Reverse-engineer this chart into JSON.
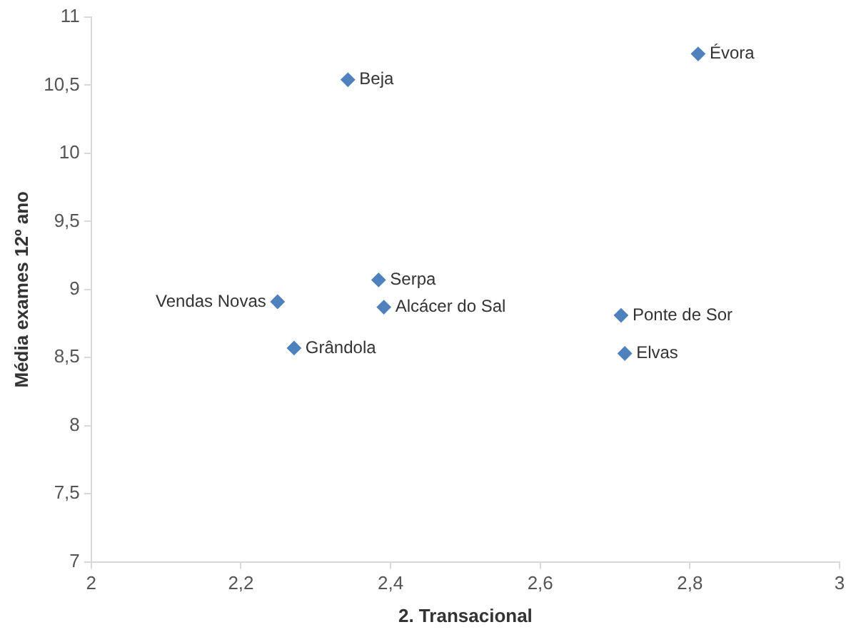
{
  "chart_data": {
    "type": "scatter",
    "xlabel": "2. Transacional",
    "ylabel": "Média exames 12º ano",
    "x": [
      2.811,
      2.343,
      2.384,
      2.249,
      2.391,
      2.271,
      2.708,
      2.713
    ],
    "series": [
      {
        "color": "#4f81bd",
        "values": [
          10.73,
          10.54,
          9.07,
          8.91,
          8.87,
          8.57,
          8.81,
          8.53
        ]
      }
    ],
    "xlim": [
      2,
      3
    ],
    "xticks": [
      2,
      {
        "value": 2.2,
        "label": "2,2"
      },
      {
        "value": 2.4,
        "label": "2,4"
      },
      {
        "value": 2.6,
        "label": "2,6"
      },
      {
        "value": 2.8,
        "label": "2,8"
      },
      3
    ],
    "ylim": [
      7,
      11
    ],
    "yticks": [
      7,
      {
        "value": 7.5,
        "label": "7,5"
      },
      8,
      {
        "value": 8.5,
        "label": "8,5"
      },
      9,
      {
        "value": 9.5,
        "label": "9,5"
      },
      10,
      {
        "value": 10.5,
        "label": "10,5"
      },
      11
    ],
    "annotations": [
      {
        "text": "Évora",
        "x": 2.811,
        "y": 10.73
      },
      {
        "text": "Beja",
        "x": 2.343,
        "y": 10.54
      },
      {
        "text": "Serpa",
        "x": 2.384,
        "y": 9.07
      },
      {
        "text": "Alcácer do Sal",
        "x": 2.391,
        "y": 8.87
      },
      {
        "text": "Vendas Novas",
        "x": 2.249,
        "y": 8.91
      },
      {
        "text": "Grândola",
        "x": 2.271,
        "y": 8.57
      },
      {
        "text": "Ponte de Sor",
        "x": 2.708,
        "y": 8.81
      },
      {
        "text": "Elvas",
        "x": 2.713,
        "y": 8.53
      }
    ],
    "grid": false,
    "legend": false,
    "marker": "diamond"
  }
}
